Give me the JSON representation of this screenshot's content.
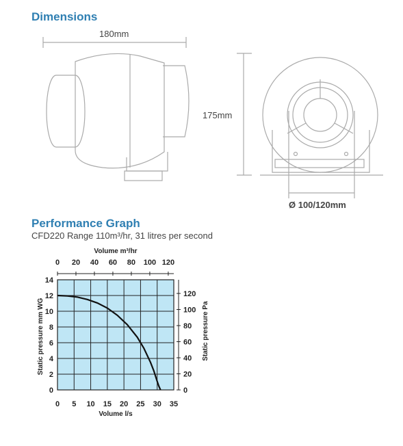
{
  "dimensions": {
    "title": "Dimensions",
    "width_label": "180mm",
    "height_label": "175mm",
    "diameter_label": "Ø 100/120mm"
  },
  "performance": {
    "title": "Performance Graph",
    "subtitle": "CFD220 Range 110m³/hr, 31 litres per second"
  },
  "colors": {
    "accent": "#2f7fb2",
    "grid_fill": "#bfe6f5"
  },
  "chart_data": {
    "type": "line",
    "title": "",
    "xlabel": "Volume l/s",
    "x2label": "Volume m³/hr",
    "ylabel": "Static pressure mm WG",
    "y2label": "Static pressure Pa",
    "xlim": [
      0,
      35
    ],
    "ylim": [
      0,
      14
    ],
    "x2lim": [
      0,
      126
    ],
    "y2lim": [
      0,
      137
    ],
    "x_ticks": [
      "0",
      "5",
      "10",
      "15",
      "20",
      "25",
      "30",
      "35"
    ],
    "y_ticks": [
      "0",
      "2",
      "4",
      "6",
      "8",
      "10",
      "12",
      "14"
    ],
    "x2_ticks": [
      "0",
      "20",
      "40",
      "60",
      "80",
      "100",
      "120"
    ],
    "y2_ticks": [
      "0",
      "20",
      "40",
      "60",
      "80",
      "100",
      "120"
    ],
    "grid": true,
    "series": [
      {
        "x": [
          0,
          3,
          6,
          9,
          12,
          15,
          18,
          21,
          24,
          26,
          28,
          29,
          30,
          30.5,
          31
        ],
        "y": [
          12,
          11.95,
          11.8,
          11.5,
          11.05,
          10.4,
          9.5,
          8.3,
          6.7,
          5.3,
          3.5,
          2.4,
          1.1,
          0.5,
          0
        ]
      }
    ]
  }
}
